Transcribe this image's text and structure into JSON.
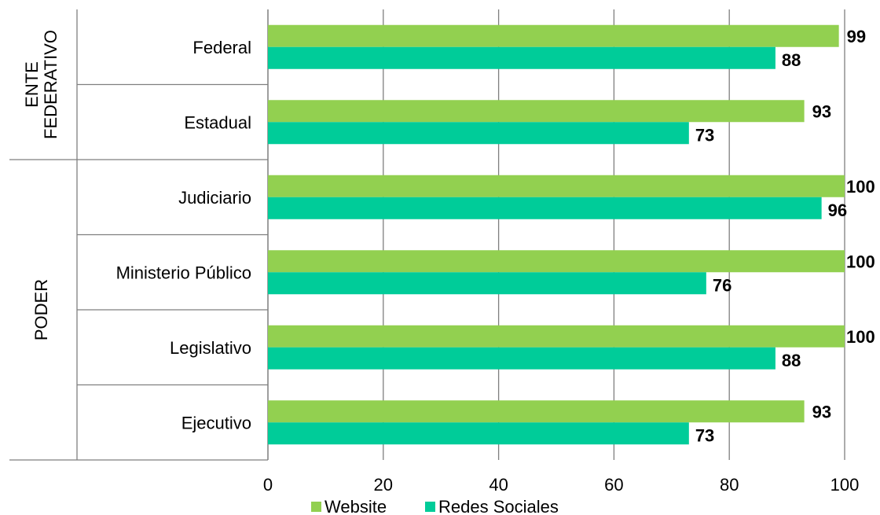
{
  "colors": {
    "website": "#92d050",
    "redes": "#00cc99",
    "grid": "#7f7f7f"
  },
  "chart_data": {
    "type": "bar",
    "orientation": "horizontal",
    "categories": [
      "Federal",
      "Estadual",
      "Judiciario",
      "Ministerio Público",
      "Legislativo",
      "Ejecutivo"
    ],
    "groups": [
      {
        "label_lines": [
          "ENTE",
          "FEDERATIVO"
        ],
        "categories": [
          "Federal",
          "Estadual"
        ]
      },
      {
        "label_lines": [
          "PODER"
        ],
        "categories": [
          "Judiciario",
          "Ministerio Público",
          "Legislativo",
          "Ejecutivo"
        ]
      }
    ],
    "series": [
      {
        "name": "Website",
        "values": [
          99,
          93,
          100,
          100,
          100,
          93
        ]
      },
      {
        "name": "Redes Sociales",
        "values": [
          88,
          73,
          96,
          76,
          88,
          73
        ]
      }
    ],
    "xlim": [
      0,
      100
    ],
    "xticks": [
      0,
      20,
      40,
      60,
      80,
      100
    ],
    "grid": true,
    "data_labels": true,
    "legend_position": "bottom"
  }
}
